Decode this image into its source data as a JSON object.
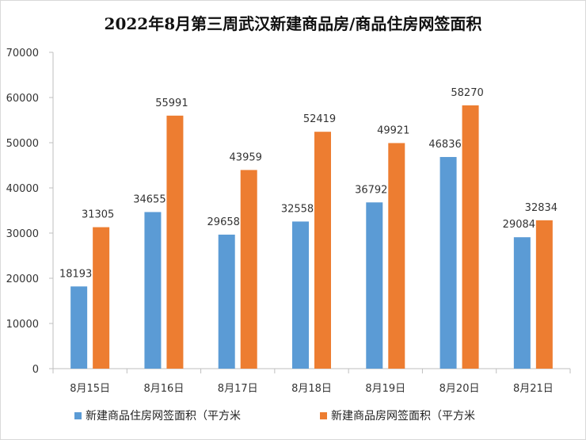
{
  "chart_data": {
    "type": "bar",
    "title": "2022年8月第三周武汉新建商品房/商品住房网签面积",
    "categories": [
      "8月15日",
      "8月16日",
      "8月17日",
      "8月18日",
      "8月19日",
      "8月20日",
      "8月21日"
    ],
    "series": [
      {
        "name": "新建商品住房网签面积（平方米",
        "color": "#5b9bd5",
        "values": [
          18193,
          34655,
          29658,
          32558,
          36792,
          46836,
          29084
        ]
      },
      {
        "name": "新建商品房网签面积（平方米",
        "color": "#ed7d31",
        "values": [
          31305,
          55991,
          43959,
          52419,
          49921,
          58270,
          32834
        ]
      }
    ],
    "ylim": [
      0,
      70000
    ],
    "yticks": [
      0,
      10000,
      20000,
      30000,
      40000,
      50000,
      60000,
      70000
    ],
    "grid": false,
    "legend_position": "bottom"
  }
}
